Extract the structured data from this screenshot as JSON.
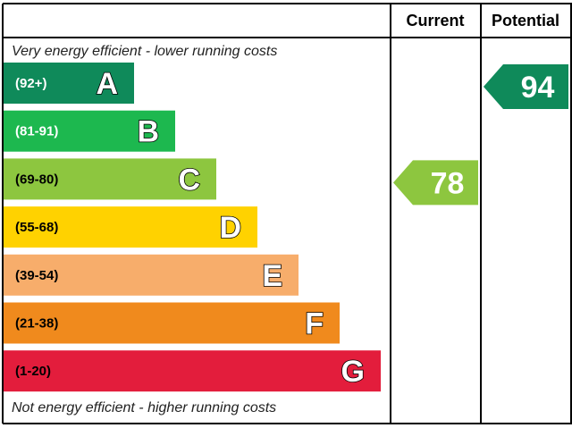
{
  "chart_data": {
    "type": "bar",
    "columns": {
      "current": "Current",
      "potential": "Potential"
    },
    "top_note": "Very energy efficient - lower running costs",
    "bottom_note": "Not energy efficient - higher running costs",
    "bands": [
      {
        "letter": "A",
        "range": "(92+)",
        "min": 92,
        "max": 100,
        "color": "#0f8a5a",
        "range_color": "#ffffff"
      },
      {
        "letter": "B",
        "range": "(81-91)",
        "min": 81,
        "max": 91,
        "color": "#1db84f",
        "range_color": "#ffffff"
      },
      {
        "letter": "C",
        "range": "(69-80)",
        "min": 69,
        "max": 80,
        "color": "#8dc63f",
        "range_color": "#000000"
      },
      {
        "letter": "D",
        "range": "(55-68)",
        "min": 55,
        "max": 68,
        "color": "#ffd200",
        "range_color": "#000000"
      },
      {
        "letter": "E",
        "range": "(39-54)",
        "min": 39,
        "max": 54,
        "color": "#f7ad6b",
        "range_color": "#000000"
      },
      {
        "letter": "F",
        "range": "(21-38)",
        "min": 21,
        "max": 38,
        "color": "#f08a1d",
        "range_color": "#000000"
      },
      {
        "letter": "G",
        "range": "(1-20)",
        "min": 1,
        "max": 20,
        "color": "#e31d3c",
        "range_color": "#000000"
      }
    ],
    "current": {
      "value": 78,
      "band": "C",
      "color": "#8dc63f"
    },
    "potential": {
      "value": 94,
      "band": "A",
      "color": "#0f8a5a"
    }
  }
}
